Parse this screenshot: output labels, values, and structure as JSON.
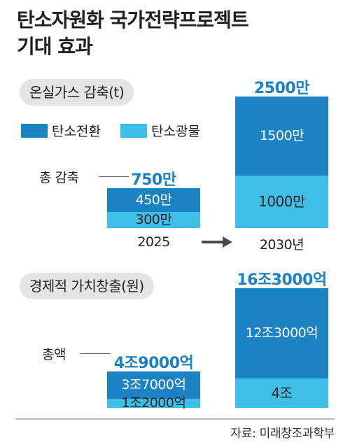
{
  "title_line1": "탄소자원화 국가전략프로젝트",
  "title_line2": "기대 효과",
  "colors": {
    "transition": "#1b82c4",
    "mineral": "#3fbfe8",
    "total_text": "#1a82c3"
  },
  "chart_data": [
    {
      "type": "bar",
      "stacked": true,
      "title": "온실가스 감축(t)",
      "categories": [
        "2025",
        "2030년"
      ],
      "series": [
        {
          "name": "탄소전환",
          "values": [
            4500000,
            15000000
          ],
          "labels": [
            "450만",
            "1500만"
          ]
        },
        {
          "name": "탄소광물",
          "values": [
            3000000,
            10000000
          ],
          "labels": [
            "300만",
            "1000만"
          ]
        }
      ],
      "totals": [
        "750만",
        "2500만"
      ],
      "total_label": "총 감축"
    },
    {
      "type": "bar",
      "stacked": true,
      "title": "경제적 가치창출(원)",
      "categories": [
        "2025",
        "2030"
      ],
      "series": [
        {
          "name": "탄소전환",
          "values": [
            37000,
            123000
          ],
          "labels": [
            "3조7000억",
            "12조3000억"
          ]
        },
        {
          "name": "탄소광물",
          "values": [
            12000,
            40000
          ],
          "labels": [
            "1조2000억",
            "4조"
          ]
        }
      ],
      "totals": [
        "4조9000억",
        "16조3000억"
      ],
      "total_label": "총액"
    }
  ],
  "source": "자료: 미래창조과학부"
}
